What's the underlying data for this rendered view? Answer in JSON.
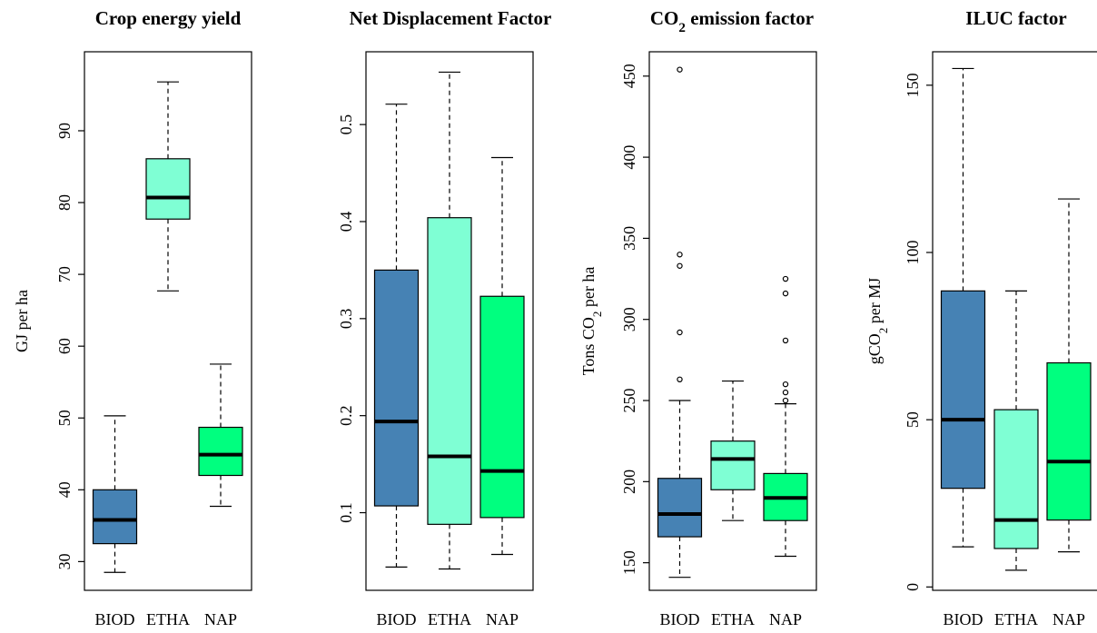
{
  "colors": {
    "BIOD": "#4682b4",
    "ETHA": "#7fffd4",
    "NAP": "#00ff7f",
    "median": "#000000",
    "frame": "#000000"
  },
  "chart_data": [
    {
      "type": "box",
      "title": "Crop energy yield",
      "ylabel": "GJ per ha",
      "categories": [
        "BIOD",
        "ETHA",
        "NAP"
      ],
      "ylim": [
        26,
        101
      ],
      "yticks": [
        30,
        40,
        50,
        60,
        70,
        80,
        90
      ],
      "boxes": [
        {
          "name": "BIOD",
          "min": 28.5,
          "q1": 32.5,
          "median": 35.8,
          "q3": 40.0,
          "max": 50.3,
          "outliers": []
        },
        {
          "name": "ETHA",
          "min": 67.7,
          "q1": 77.7,
          "median": 80.7,
          "q3": 86.1,
          "max": 96.8,
          "outliers": []
        },
        {
          "name": "NAP",
          "min": 37.7,
          "q1": 42.0,
          "median": 44.9,
          "q3": 48.7,
          "max": 57.5,
          "outliers": []
        }
      ]
    },
    {
      "type": "box",
      "title": "Net Displacement Factor",
      "ylabel": "",
      "categories": [
        "BIOD",
        "ETHA",
        "NAP"
      ],
      "ylim": [
        0.02,
        0.575
      ],
      "yticks": [
        0.1,
        0.2,
        0.3,
        0.4,
        0.5
      ],
      "boxes": [
        {
          "name": "BIOD",
          "min": 0.044,
          "q1": 0.107,
          "median": 0.194,
          "q3": 0.35,
          "max": 0.521,
          "outliers": []
        },
        {
          "name": "ETHA",
          "min": 0.042,
          "q1": 0.088,
          "median": 0.158,
          "q3": 0.404,
          "max": 0.554,
          "outliers": []
        },
        {
          "name": "NAP",
          "min": 0.057,
          "q1": 0.095,
          "median": 0.143,
          "q3": 0.323,
          "max": 0.466,
          "outliers": []
        }
      ]
    },
    {
      "type": "box",
      "title_main": "CO",
      "title_sub": "2",
      "title_rest": " emission factor",
      "ylabel_main": "Tons CO",
      "ylabel_sub": "2",
      "ylabel_rest": " per ha",
      "categories": [
        "BIOD",
        "ETHA",
        "NAP"
      ],
      "ylim": [
        133,
        465
      ],
      "yticks": [
        150,
        200,
        250,
        300,
        350,
        400,
        450
      ],
      "boxes": [
        {
          "name": "BIOD",
          "min": 141,
          "q1": 166,
          "median": 180,
          "q3": 202,
          "max": 250,
          "outliers": [
            263,
            292,
            333,
            340,
            454
          ]
        },
        {
          "name": "ETHA",
          "min": 176,
          "q1": 195,
          "median": 214,
          "q3": 225,
          "max": 262,
          "outliers": []
        },
        {
          "name": "NAP",
          "min": 154,
          "q1": 176,
          "median": 190,
          "q3": 205,
          "max": 248,
          "outliers": [
            250,
            255,
            260,
            287,
            316,
            325
          ]
        }
      ]
    },
    {
      "type": "box",
      "title": "ILUC factor",
      "ylabel_main": "gCO",
      "ylabel_sub": "2",
      "ylabel_rest": " per MJ",
      "categories": [
        "BIOD",
        "ETHA",
        "NAP"
      ],
      "ylim": [
        -1,
        160
      ],
      "yticks": [
        0,
        50,
        100,
        150
      ],
      "boxes": [
        {
          "name": "BIOD",
          "min": 12,
          "q1": 29.5,
          "median": 50,
          "q3": 88.5,
          "max": 155,
          "outliers": []
        },
        {
          "name": "ETHA",
          "min": 5,
          "q1": 11.5,
          "median": 20,
          "q3": 53,
          "max": 88.5,
          "outliers": []
        },
        {
          "name": "NAP",
          "min": 10.5,
          "q1": 20,
          "median": 37.5,
          "q3": 67,
          "max": 116,
          "outliers": []
        }
      ]
    }
  ]
}
